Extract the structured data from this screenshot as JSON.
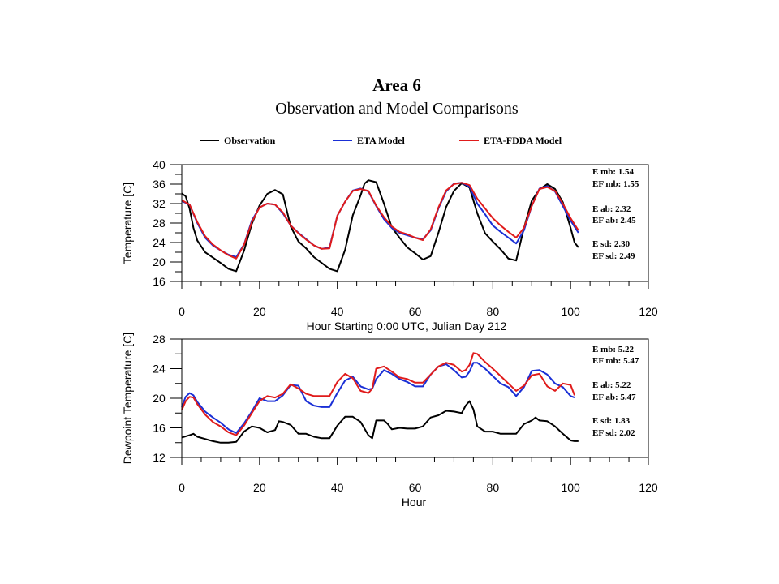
{
  "title": "Area 6",
  "subtitle": "Observation and Model Comparisons",
  "legend": [
    {
      "label": "Observation",
      "color": "#000000"
    },
    {
      "label": "ETA Model",
      "color": "#1a2fd6"
    },
    {
      "label": "ETA-FDDA Model",
      "color": "#e01b1b"
    }
  ],
  "chart_data": [
    {
      "type": "line",
      "xlabel": "Hour Starting 0:00 UTC, Julian Day 212",
      "ylabel": "Temperature [C]",
      "xlim": [
        0,
        120
      ],
      "ylim": [
        16,
        40
      ],
      "xticks": [
        0,
        20,
        40,
        60,
        80,
        100,
        120
      ],
      "yticks": [
        16,
        20,
        24,
        28,
        32,
        36,
        40
      ],
      "stats": [
        "E mb: 1.54",
        "EF mb: 1.55",
        "E ab: 2.32",
        "EF ab: 2.45",
        "E sd: 2.30",
        "EF sd: 2.49"
      ],
      "series": [
        {
          "name": "Observation",
          "color": "#000000",
          "x": [
            0,
            1,
            2,
            3,
            4,
            6,
            8,
            10,
            12,
            14,
            16,
            18,
            20,
            22,
            24,
            26,
            28,
            30,
            32,
            34,
            36,
            38,
            40,
            42,
            44,
            46,
            47,
            48,
            50,
            52,
            54,
            56,
            58,
            60,
            62,
            64,
            66,
            68,
            70,
            72,
            74,
            76,
            78,
            80,
            82,
            84,
            86,
            88,
            90,
            92,
            94,
            96,
            98,
            100,
            101,
            102
          ],
          "y": [
            34.1,
            33.5,
            31,
            27,
            24.4,
            22,
            20.9,
            19.8,
            18.6,
            18.1,
            22.3,
            27.8,
            31.6,
            34,
            34.8,
            33.9,
            27.3,
            24.2,
            22.8,
            21,
            19.8,
            18.6,
            18.1,
            22.5,
            29.6,
            33.7,
            36.1,
            36.8,
            36.4,
            32,
            27.1,
            25,
            23,
            21.8,
            20.5,
            21.2,
            26,
            31.3,
            34.6,
            36.2,
            35.3,
            30,
            25.9,
            24.2,
            22.6,
            20.7,
            20.3,
            27,
            32.6,
            34.9,
            36,
            35,
            32.3,
            27,
            24,
            23
          ]
        },
        {
          "name": "ETA Model",
          "color": "#1a2fd6",
          "x": [
            0,
            2,
            4,
            6,
            8,
            10,
            12,
            14,
            16,
            18,
            20,
            22,
            24,
            26,
            28,
            30,
            32,
            34,
            36,
            38,
            40,
            42,
            44,
            46,
            48,
            50,
            52,
            54,
            56,
            58,
            60,
            62,
            64,
            66,
            68,
            70,
            72,
            74,
            76,
            78,
            80,
            82,
            84,
            86,
            88,
            90,
            92,
            94,
            96,
            98,
            100,
            102
          ],
          "y": [
            32.5,
            31.8,
            28,
            25,
            23.4,
            22.4,
            21.5,
            21,
            23.6,
            28.5,
            31.2,
            32,
            31.8,
            30,
            27.5,
            26,
            24.7,
            23.4,
            22.7,
            23,
            29.5,
            32.4,
            34.7,
            35.1,
            34.5,
            31.5,
            28.8,
            27,
            26,
            25.5,
            25,
            24.7,
            26.5,
            31,
            34.5,
            36.1,
            36.3,
            35.5,
            32,
            29.8,
            27.5,
            26.2,
            25,
            23.8,
            26.5,
            31.5,
            35.1,
            35.6,
            34.5,
            31.5,
            28.5,
            26
          ]
        },
        {
          "name": "ETA-FDDA Model",
          "color": "#e01b1b",
          "x": [
            0,
            2,
            4,
            6,
            8,
            10,
            12,
            14,
            16,
            18,
            20,
            22,
            24,
            26,
            28,
            30,
            32,
            34,
            36,
            38,
            40,
            42,
            44,
            46,
            48,
            50,
            52,
            54,
            56,
            58,
            60,
            62,
            64,
            66,
            68,
            70,
            72,
            74,
            76,
            78,
            80,
            82,
            84,
            86,
            88,
            90,
            92,
            94,
            96,
            98,
            100,
            102
          ],
          "y": [
            32.7,
            31.8,
            28.2,
            25.3,
            23.6,
            22.4,
            21.4,
            20.7,
            23.5,
            28.2,
            31.2,
            32,
            31.8,
            30.2,
            27.5,
            25.9,
            24.6,
            23.4,
            22.7,
            22.8,
            29.5,
            32.4,
            34.6,
            35,
            34.6,
            31.6,
            29.2,
            27.3,
            26.2,
            25.7,
            25,
            24.5,
            26.7,
            31.2,
            34.7,
            36,
            36.3,
            35.8,
            33,
            31,
            29,
            27.5,
            26.2,
            25,
            27,
            31.5,
            35,
            35.4,
            34.6,
            32,
            29,
            26.5
          ]
        }
      ]
    },
    {
      "type": "line",
      "xlabel": "Hour",
      "ylabel": "Dewpoint Temperature [C]",
      "xlim": [
        0,
        120
      ],
      "ylim": [
        12,
        28
      ],
      "xticks": [
        0,
        20,
        40,
        60,
        80,
        100,
        120
      ],
      "yticks": [
        12,
        16,
        20,
        24,
        28
      ],
      "stats": [
        "E mb: 5.22",
        "EF mb: 5.47",
        "E ab: 5.22",
        "EF ab: 5.47",
        "E sd: 1.83",
        "EF sd: 2.02"
      ],
      "series": [
        {
          "name": "Observation",
          "color": "#000000",
          "x": [
            0,
            2,
            3,
            4,
            6,
            8,
            10,
            12,
            14,
            16,
            18,
            20,
            22,
            24,
            25,
            26,
            28,
            30,
            32,
            34,
            36,
            38,
            40,
            42,
            44,
            46,
            48,
            49,
            50,
            52,
            53,
            54,
            56,
            58,
            60,
            62,
            64,
            66,
            68,
            70,
            72,
            73,
            74,
            75,
            76,
            78,
            80,
            82,
            84,
            86,
            88,
            90,
            91,
            92,
            94,
            96,
            98,
            100,
            101,
            102
          ],
          "y": [
            14.7,
            15,
            15.2,
            14.8,
            14.5,
            14.2,
            14,
            14,
            14.1,
            15.5,
            16.2,
            16,
            15.4,
            15.7,
            16.9,
            16.8,
            16.4,
            15.2,
            15.2,
            14.8,
            14.6,
            14.6,
            16.3,
            17.5,
            17.5,
            16.8,
            15,
            14.6,
            17,
            17,
            16.5,
            15.8,
            16,
            15.9,
            15.9,
            16.2,
            17.4,
            17.7,
            18.3,
            18.2,
            18,
            19,
            19.6,
            18.5,
            16.2,
            15.5,
            15.5,
            15.2,
            15.2,
            15.2,
            16.5,
            17,
            17.4,
            17,
            16.9,
            16.2,
            15.2,
            14.3,
            14.2,
            14.2
          ]
        },
        {
          "name": "ETA Model",
          "color": "#1a2fd6",
          "x": [
            0,
            1,
            2,
            3,
            4,
            6,
            8,
            10,
            12,
            14,
            16,
            18,
            20,
            22,
            24,
            26,
            28,
            30,
            32,
            34,
            36,
            38,
            40,
            42,
            44,
            46,
            48,
            49,
            50,
            52,
            54,
            56,
            58,
            60,
            62,
            64,
            66,
            68,
            70,
            72,
            73,
            74,
            75,
            76,
            78,
            80,
            82,
            84,
            86,
            88,
            90,
            92,
            94,
            96,
            98,
            100,
            101
          ],
          "y": [
            18.8,
            20.2,
            20.7,
            20.4,
            19.5,
            18.2,
            17.4,
            16.7,
            15.8,
            15.3,
            16.6,
            18.2,
            20,
            19.6,
            19.6,
            20.4,
            21.8,
            21.7,
            19.6,
            19,
            18.8,
            18.8,
            20.7,
            22.4,
            22.9,
            21.6,
            21.2,
            21.3,
            22.6,
            23.8,
            23.3,
            22.6,
            22.2,
            21.6,
            21.6,
            23.2,
            24.3,
            24.6,
            23.8,
            22.8,
            22.9,
            23.6,
            24.8,
            24.8,
            24,
            23,
            22,
            21.5,
            20.3,
            21.5,
            23.7,
            23.8,
            23.2,
            22,
            21.5,
            20.3,
            20.1
          ]
        },
        {
          "name": "ETA-FDDA Model",
          "color": "#e01b1b",
          "x": [
            0,
            1,
            2,
            3,
            4,
            6,
            8,
            10,
            12,
            14,
            16,
            18,
            20,
            22,
            24,
            26,
            28,
            30,
            32,
            34,
            36,
            38,
            40,
            42,
            44,
            46,
            48,
            49,
            50,
            52,
            54,
            56,
            58,
            60,
            62,
            64,
            66,
            68,
            70,
            72,
            73,
            74,
            75,
            76,
            78,
            80,
            82,
            84,
            86,
            88,
            90,
            92,
            94,
            96,
            98,
            100,
            101
          ],
          "y": [
            18.4,
            19.6,
            20.2,
            20.1,
            19.2,
            17.8,
            16.8,
            16.2,
            15.4,
            15,
            16.3,
            18,
            19.6,
            20.3,
            20.1,
            20.6,
            21.9,
            21.3,
            20.6,
            20.3,
            20.3,
            20.3,
            22.2,
            23.3,
            22.7,
            21,
            20.7,
            21.3,
            24,
            24.3,
            23.6,
            22.8,
            22.6,
            22.1,
            22.1,
            23.2,
            24.3,
            24.8,
            24.5,
            23.6,
            23.8,
            24.5,
            26.1,
            26,
            24.9,
            24,
            23,
            22,
            21,
            21.7,
            23.1,
            23.3,
            21.6,
            21,
            22,
            21.8,
            20.4
          ]
        }
      ]
    }
  ]
}
